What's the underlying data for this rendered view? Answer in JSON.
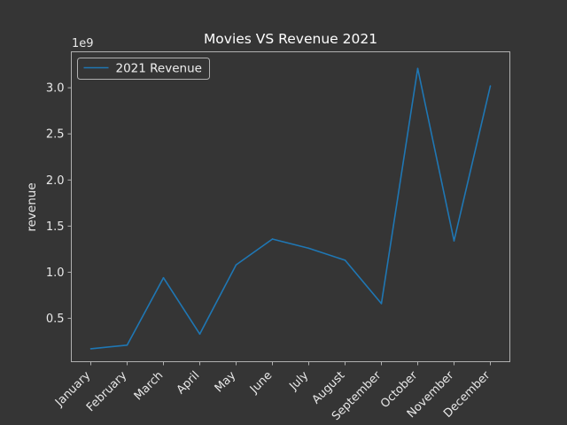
{
  "chart_data": {
    "type": "line",
    "title": "Movies VS Revenue 2021",
    "xlabel": "",
    "ylabel": "revenue",
    "offset_text": "1e9",
    "categories": [
      "January",
      "February",
      "March",
      "April",
      "May",
      "June",
      "July",
      "August",
      "September",
      "October",
      "November",
      "December"
    ],
    "series": [
      {
        "name": "2021 Revenue",
        "color": "#1f77b4",
        "values": [
          0.17,
          0.21,
          0.94,
          0.33,
          1.08,
          1.36,
          1.26,
          1.13,
          0.66,
          3.21,
          1.34,
          3.02
        ]
      }
    ],
    "value_scale": 1000000000,
    "ylim": [
      0.03,
      3.39
    ],
    "yticks": [
      0.5,
      1.0,
      1.5,
      2.0,
      2.5,
      3.0
    ],
    "ytick_labels": [
      "0.5",
      "1.0",
      "1.5",
      "2.0",
      "2.5",
      "3.0"
    ],
    "grid": false,
    "legend_position": "upper left",
    "colors": {
      "background": "#353535",
      "axes_edge": "#b0b0b0",
      "text": "#e8e8e8"
    }
  }
}
